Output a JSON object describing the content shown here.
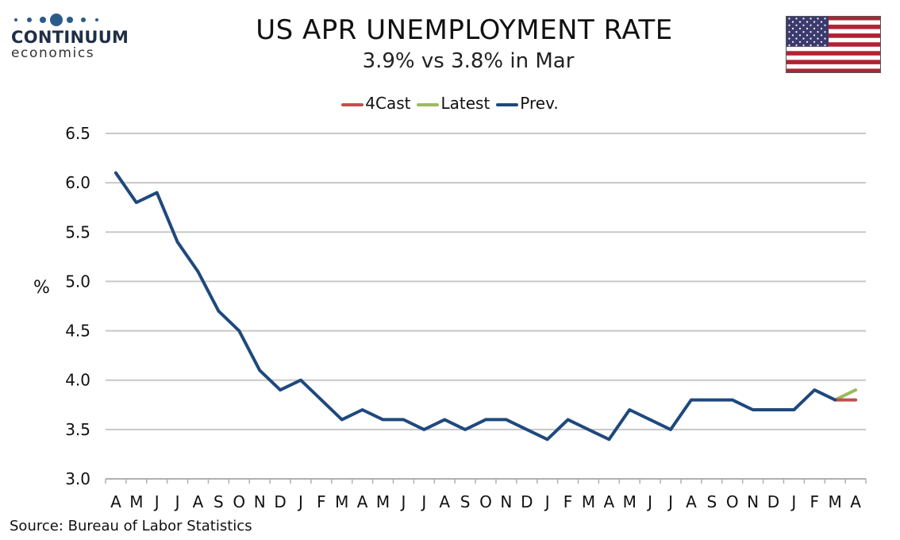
{
  "brand": {
    "name": "CONTINUUM",
    "sub": "economics",
    "dot_color": "#2b5b8a"
  },
  "flag": {
    "name": "us-flag-icon"
  },
  "source": "Source: Bureau of Labor Statistics",
  "chart_data": {
    "type": "line",
    "title": "US APR UNEMPLOYMENT RATE",
    "subtitle": "3.9% vs 3.8% in Mar",
    "ylabel": "%",
    "xlabel": "",
    "ylim": [
      3.0,
      6.5
    ],
    "yticks": [
      "3.0",
      "3.5",
      "4.0",
      "4.5",
      "5.0",
      "5.5",
      "6.0",
      "6.5"
    ],
    "grid": "horizontal",
    "legend_position": "top-center",
    "categories": [
      "A",
      "M",
      "J",
      "J",
      "A",
      "S",
      "O",
      "N",
      "D",
      "J",
      "F",
      "M",
      "A",
      "M",
      "J",
      "J",
      "A",
      "S",
      "O",
      "N",
      "D",
      "J",
      "F",
      "M",
      "A",
      "M",
      "J",
      "J",
      "A",
      "S",
      "O",
      "N",
      "D",
      "J",
      "F",
      "M",
      "A"
    ],
    "series": [
      {
        "name": "4Cast",
        "color": "#c0504d",
        "values": [
          null,
          null,
          null,
          null,
          null,
          null,
          null,
          null,
          null,
          null,
          null,
          null,
          null,
          null,
          null,
          null,
          null,
          null,
          null,
          null,
          null,
          null,
          null,
          null,
          null,
          null,
          null,
          null,
          null,
          null,
          null,
          null,
          null,
          null,
          null,
          3.8,
          3.8
        ]
      },
      {
        "name": "Latest",
        "color": "#9bbb59",
        "values": [
          null,
          null,
          null,
          null,
          null,
          null,
          null,
          null,
          null,
          null,
          null,
          null,
          null,
          null,
          null,
          null,
          null,
          null,
          null,
          null,
          null,
          null,
          null,
          null,
          null,
          null,
          null,
          null,
          null,
          null,
          null,
          null,
          null,
          null,
          null,
          3.8,
          3.9
        ]
      },
      {
        "name": "Prev.",
        "color": "#1f497d",
        "values": [
          6.1,
          5.8,
          5.9,
          5.4,
          5.1,
          4.7,
          4.5,
          4.1,
          3.9,
          4.0,
          3.8,
          3.6,
          3.7,
          3.6,
          3.6,
          3.5,
          3.6,
          3.5,
          3.6,
          3.6,
          3.5,
          3.4,
          3.6,
          3.5,
          3.4,
          3.7,
          3.6,
          3.5,
          3.8,
          3.8,
          3.8,
          3.7,
          3.7,
          3.7,
          3.9,
          3.8,
          null
        ]
      }
    ]
  }
}
